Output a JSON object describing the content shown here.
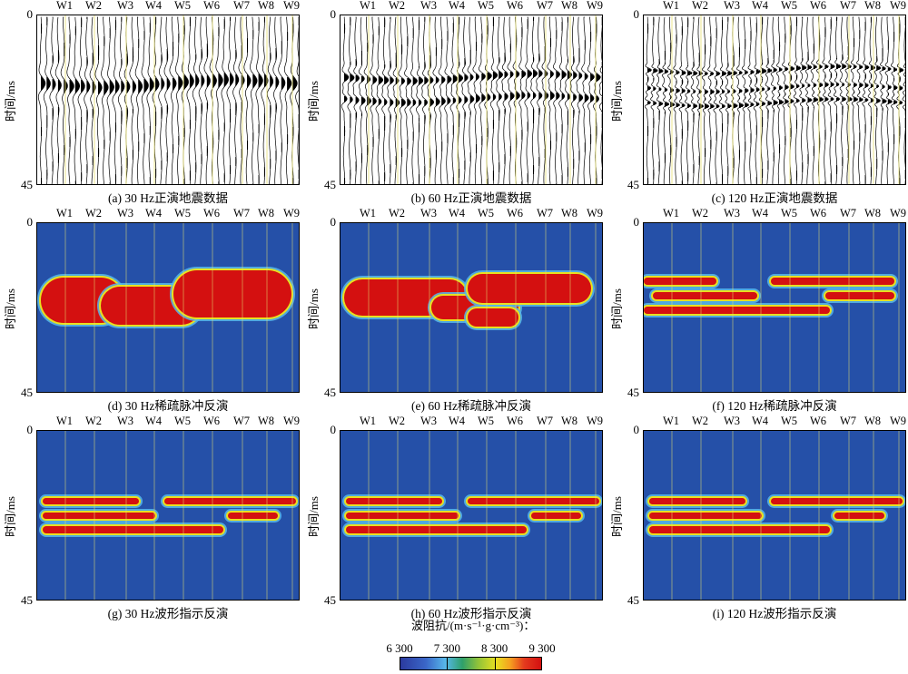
{
  "figure": {
    "yaxis_label": "时间/ms",
    "ytick_top": "0",
    "ytick_bottom": "45",
    "wells": [
      "W1",
      "W2",
      "W3",
      "W4",
      "W5",
      "W6",
      "W7",
      "W8",
      "W9"
    ],
    "panels": [
      {
        "id": "a",
        "caption": "(a) 30 Hz正演地震数据",
        "kind": "seismic",
        "freq": 30
      },
      {
        "id": "b",
        "caption": "(b) 60 Hz正演地震数据",
        "kind": "seismic",
        "freq": 60
      },
      {
        "id": "c",
        "caption": "(c) 120 Hz正演地震数据",
        "kind": "seismic",
        "freq": 120
      },
      {
        "id": "d",
        "caption": "(d) 30 Hz稀疏脉冲反演",
        "kind": "impedance",
        "freq": 30
      },
      {
        "id": "e",
        "caption": "(e) 60 Hz稀疏脉冲反演",
        "kind": "impedance",
        "freq": 60
      },
      {
        "id": "f",
        "caption": "(f) 120 Hz稀疏脉冲反演",
        "kind": "impedance",
        "freq": 120
      },
      {
        "id": "g",
        "caption": "(g) 30 Hz波形指示反演",
        "kind": "impedance",
        "freq": 30
      },
      {
        "id": "h",
        "caption": "(h) 60 Hz波形指示反演",
        "kind": "impedance",
        "freq": 60
      },
      {
        "id": "i",
        "caption": "(i) 120 Hz波形指示反演",
        "kind": "impedance",
        "freq": 120
      }
    ]
  },
  "colorbar": {
    "title": "波阻抗/(m·s⁻¹·g·cm⁻³)：",
    "ticks": [
      "6 300",
      "7 300",
      "8 300",
      "9 300"
    ],
    "tick_values": [
      6300,
      7300,
      8300,
      9300
    ],
    "colors": {
      "low": "#2b3a9e",
      "background": "#2550a8",
      "mid": "#e8e020",
      "high": "#d41010"
    }
  }
}
